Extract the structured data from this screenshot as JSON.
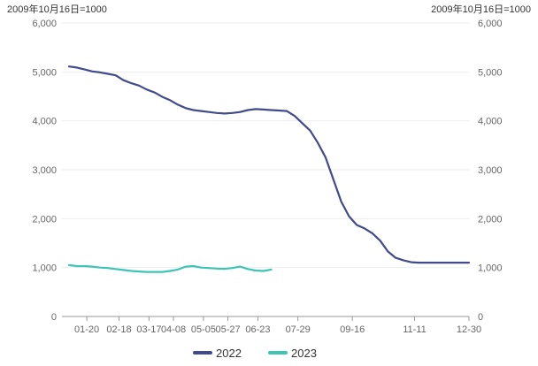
{
  "chart_data": {
    "type": "line",
    "left_axis_unit": "2009年10月16日=1000",
    "right_axis_unit": "2009年10月16日=1000",
    "ylim": [
      0,
      6000
    ],
    "y_ticks": [
      "0",
      "1,000",
      "2,000",
      "3,000",
      "4,000",
      "5,000",
      "6,000"
    ],
    "x_ticks": [
      "01-20",
      "02-18",
      "03-17",
      "04-08",
      "05-05",
      "05-27",
      "06-23",
      "07-29",
      "09-16",
      "11-11",
      "12-30"
    ],
    "grid": true,
    "legend_position": "bottom",
    "series": [
      {
        "name": "2022",
        "color": "#414a8c",
        "x": [
          "01-04",
          "01-11",
          "01-18",
          "01-25",
          "02-01",
          "02-08",
          "02-15",
          "02-22",
          "03-01",
          "03-08",
          "03-15",
          "03-22",
          "03-29",
          "04-05",
          "04-12",
          "04-19",
          "04-26",
          "05-03",
          "05-10",
          "05-17",
          "05-24",
          "05-31",
          "06-07",
          "06-14",
          "06-21",
          "06-28",
          "07-05",
          "07-12",
          "07-19",
          "07-26",
          "08-02",
          "08-09",
          "08-16",
          "08-23",
          "08-30",
          "09-06",
          "09-13",
          "09-20",
          "09-27",
          "10-04",
          "10-11",
          "10-18",
          "10-25",
          "11-01",
          "11-08",
          "11-15",
          "11-22",
          "11-29",
          "12-06",
          "12-13",
          "12-20",
          "12-27",
          "12-30"
        ],
        "values": [
          5110,
          5090,
          5050,
          5010,
          4990,
          4960,
          4930,
          4830,
          4770,
          4720,
          4640,
          4580,
          4490,
          4420,
          4330,
          4260,
          4220,
          4200,
          4180,
          4160,
          4150,
          4160,
          4180,
          4220,
          4240,
          4230,
          4220,
          4210,
          4200,
          4100,
          3950,
          3800,
          3550,
          3250,
          2800,
          2350,
          2050,
          1870,
          1800,
          1700,
          1550,
          1330,
          1200,
          1150,
          1110,
          1100,
          1100,
          1100,
          1100,
          1100,
          1100,
          1100,
          1100
        ]
      },
      {
        "name": "2023",
        "color": "#3ec4b5",
        "x": [
          "01-04",
          "01-11",
          "01-18",
          "01-25",
          "02-01",
          "02-08",
          "02-15",
          "02-22",
          "03-01",
          "03-08",
          "03-15",
          "03-22",
          "03-29",
          "04-05",
          "04-12",
          "04-19",
          "04-26",
          "05-03",
          "05-10",
          "05-17",
          "05-24",
          "05-31",
          "06-07",
          "06-14",
          "06-21",
          "06-28",
          "07-05"
        ],
        "values": [
          1050,
          1030,
          1030,
          1020,
          1000,
          990,
          970,
          950,
          930,
          920,
          910,
          910,
          910,
          930,
          960,
          1020,
          1030,
          1000,
          990,
          980,
          975,
          990,
          1020,
          970,
          940,
          930,
          960
        ]
      }
    ]
  }
}
